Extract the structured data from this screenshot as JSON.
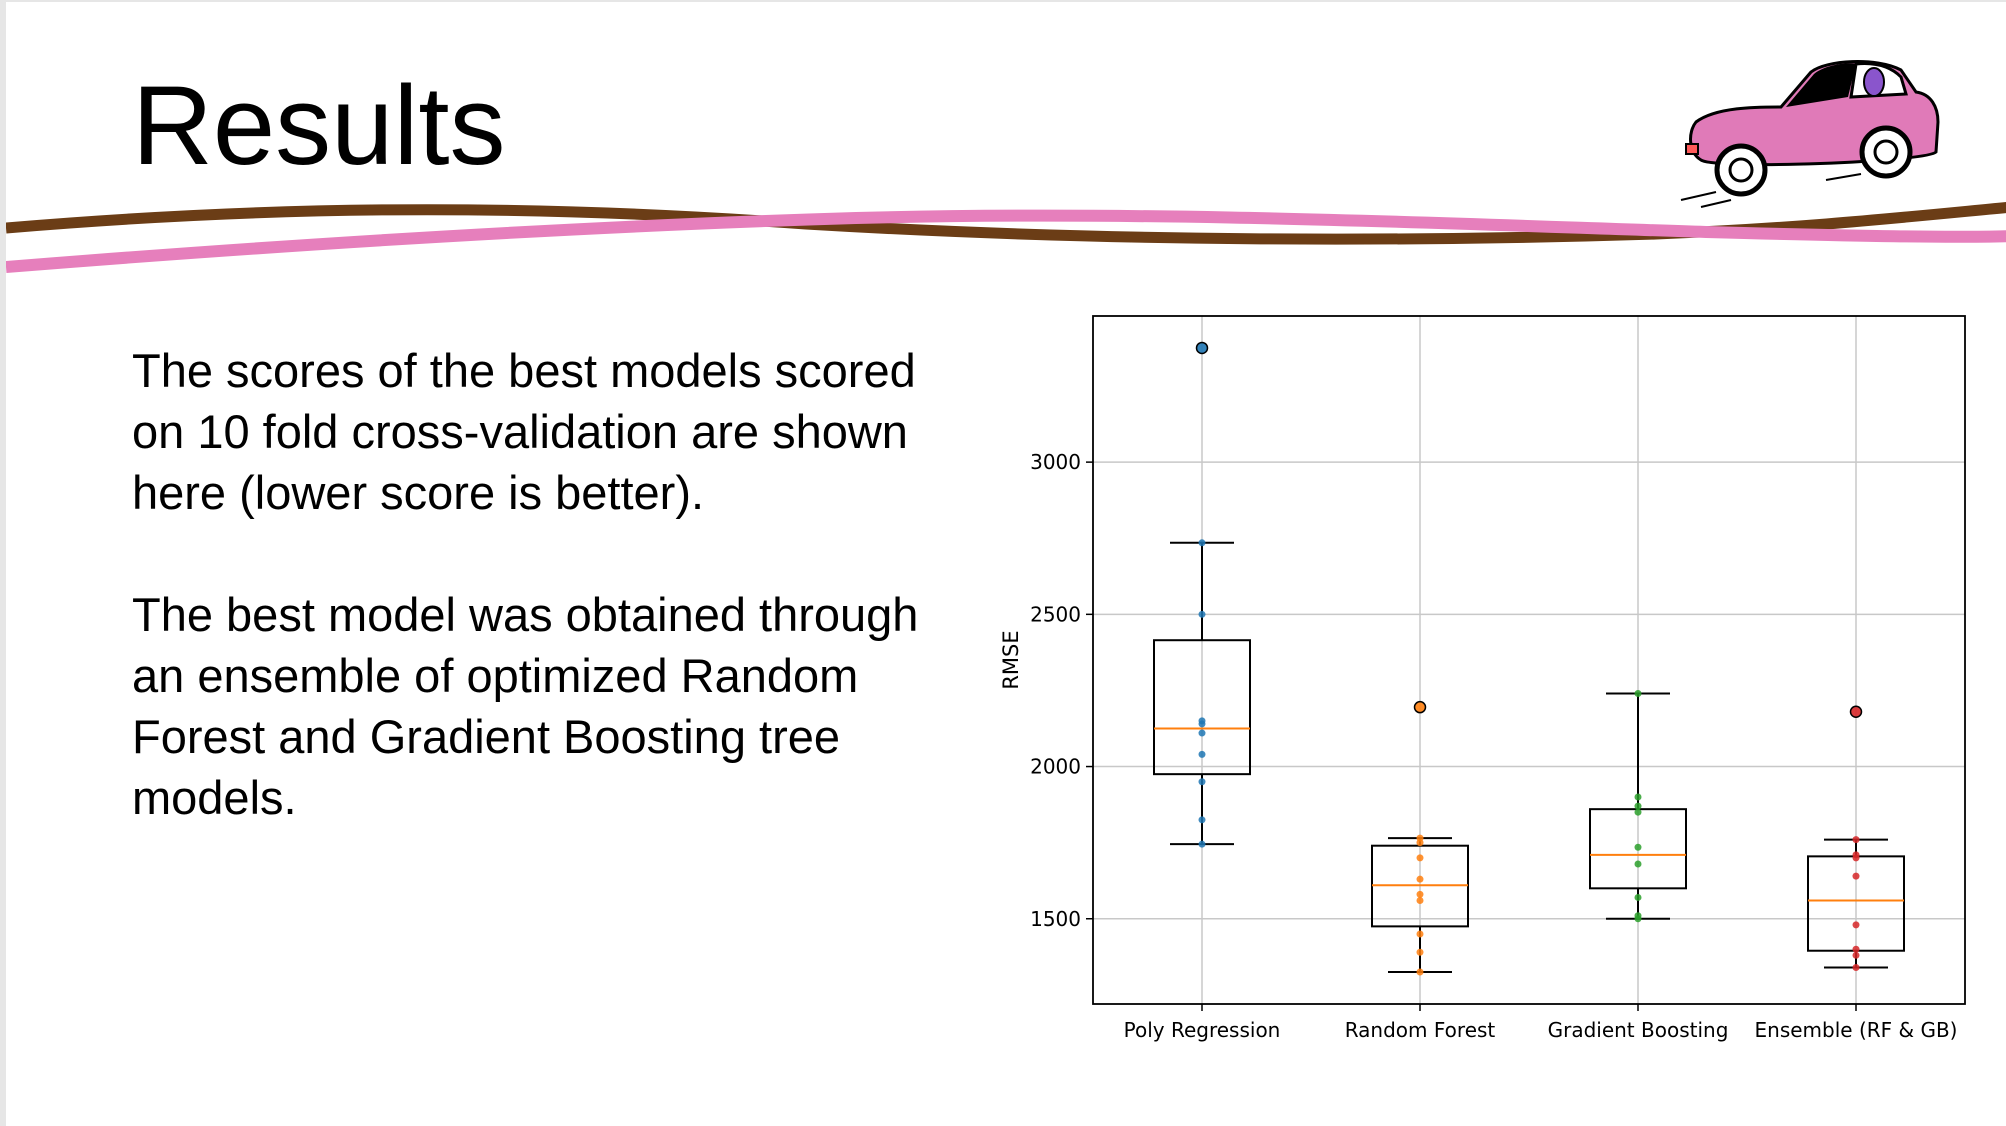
{
  "slide": {
    "title": "Results",
    "paragraphs": [
      "The scores of the best models scored on 10 fold cross-validation are shown here (lower score is better).",
      "The best model was obtained through an ensemble of optimized Random Forest and Gradient Boosting tree models."
    ],
    "logo": {
      "icon": "pink-car-icon"
    },
    "colors": {
      "ribbon_brown": "#6b3d16",
      "ribbon_pink": "#e67fbc",
      "car_pink": "#e07ab8"
    }
  },
  "chart_data": {
    "type": "box",
    "title": "",
    "xlabel": "",
    "ylabel": "RMSE",
    "ylim": [
      1220,
      3480
    ],
    "yticks": [
      1500,
      2000,
      2500,
      3000
    ],
    "grid": true,
    "categories": [
      "Poly Regression",
      "Random Forest",
      "Gradient Boosting",
      "Ensemble (RF & GB)"
    ],
    "series_colors": [
      "#1f77b4",
      "#ff7f0e",
      "#2ca02c",
      "#d62728"
    ],
    "median_color": "#ff7f0e",
    "boxes": [
      {
        "name": "Poly Regression",
        "whisker_low": 1745,
        "q1": 1975,
        "median": 2125,
        "q3": 2415,
        "whisker_high": 2735,
        "fliers": [
          3375
        ],
        "points": [
          1745,
          1825,
          1950,
          2040,
          2110,
          2140,
          2150,
          2500,
          2735
        ]
      },
      {
        "name": "Random Forest",
        "whisker_low": 1325,
        "q1": 1475,
        "median": 1610,
        "q3": 1740,
        "whisker_high": 1765,
        "fliers": [
          2195
        ],
        "points": [
          1325,
          1390,
          1450,
          1560,
          1580,
          1630,
          1700,
          1750,
          1765
        ]
      },
      {
        "name": "Gradient Boosting",
        "whisker_low": 1500,
        "q1": 1600,
        "median": 1710,
        "q3": 1860,
        "whisker_high": 2240,
        "fliers": [],
        "points": [
          1500,
          1510,
          1570,
          1680,
          1735,
          1850,
          1870,
          1900,
          2240
        ]
      },
      {
        "name": "Ensemble (RF & GB)",
        "whisker_low": 1340,
        "q1": 1395,
        "median": 1560,
        "q3": 1705,
        "whisker_high": 1760,
        "fliers": [
          2180
        ],
        "points": [
          1340,
          1380,
          1400,
          1480,
          1640,
          1700,
          1710,
          1760
        ]
      }
    ]
  }
}
